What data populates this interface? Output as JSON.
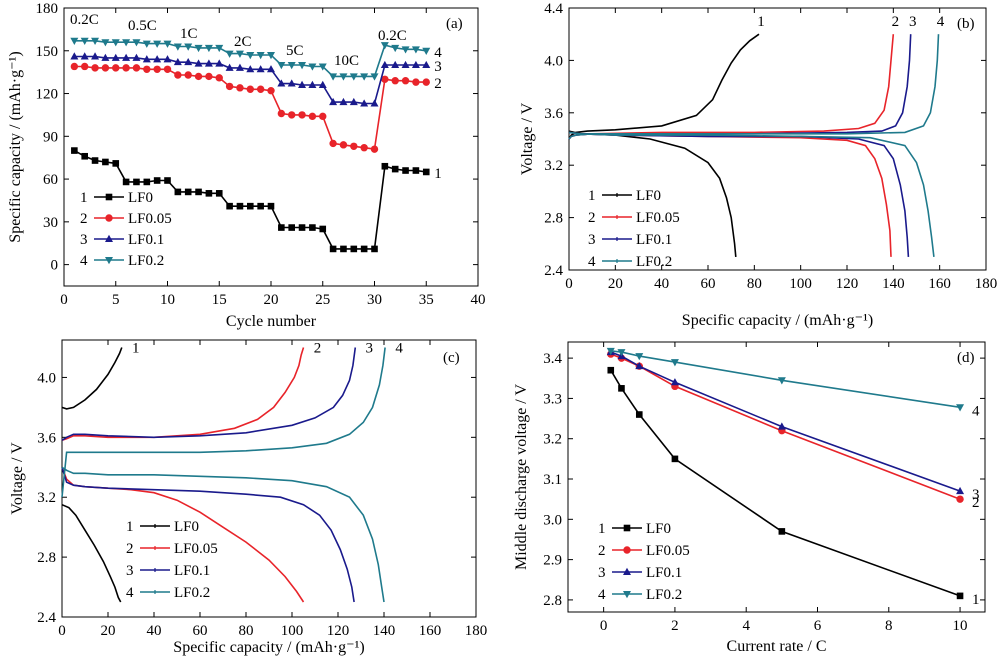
{
  "chart_data": [
    {
      "panel": "(a)",
      "type": "line",
      "xlabel": "Cycle number",
      "ylabel": "Specific capacity / (mAh·g⁻¹)",
      "xlim": [
        0,
        40
      ],
      "ylim": [
        -15,
        180
      ],
      "xticks": [
        0,
        5,
        10,
        15,
        20,
        25,
        30,
        35,
        40
      ],
      "yticks": [
        0,
        30,
        60,
        90,
        120,
        150,
        180
      ],
      "annotations": [
        "0.2C",
        "0.5C",
        "1C",
        "2C",
        "5C",
        "10C",
        "0.2C"
      ],
      "series": [
        {
          "name": "LF0",
          "id": "1",
          "color": "#000000",
          "marker": "square",
          "x": [
            1,
            2,
            3,
            4,
            5,
            6,
            7,
            8,
            9,
            10,
            11,
            12,
            13,
            14,
            15,
            16,
            17,
            18,
            19,
            20,
            21,
            22,
            23,
            24,
            25,
            26,
            27,
            28,
            29,
            30,
            31,
            32,
            33,
            34,
            35
          ],
          "y": [
            80,
            76,
            73,
            72,
            71,
            58,
            58,
            58,
            59,
            59,
            51,
            51,
            51,
            50,
            50,
            41,
            41,
            41,
            41,
            41,
            26,
            26,
            26,
            26,
            25,
            11,
            11,
            11,
            11,
            11,
            69,
            67,
            66,
            66,
            65
          ]
        },
        {
          "name": "LF0.05",
          "id": "2",
          "color": "#e8242a",
          "marker": "circle",
          "x": [
            1,
            2,
            3,
            4,
            5,
            6,
            7,
            8,
            9,
            10,
            11,
            12,
            13,
            14,
            15,
            16,
            17,
            18,
            19,
            20,
            21,
            22,
            23,
            24,
            25,
            26,
            27,
            28,
            29,
            30,
            31,
            32,
            33,
            34,
            35
          ],
          "y": [
            139,
            139,
            138,
            138,
            138,
            138,
            138,
            137,
            137,
            137,
            133,
            133,
            132,
            132,
            131,
            125,
            124,
            123,
            123,
            122,
            106,
            105,
            105,
            104,
            104,
            85,
            84,
            83,
            82,
            81,
            130,
            129,
            129,
            128,
            128
          ]
        },
        {
          "name": "LF0.1",
          "id": "3",
          "color": "#1a1a8c",
          "marker": "triangle-up",
          "x": [
            1,
            2,
            3,
            4,
            5,
            6,
            7,
            8,
            9,
            10,
            11,
            12,
            13,
            14,
            15,
            16,
            17,
            18,
            19,
            20,
            21,
            22,
            23,
            24,
            25,
            26,
            27,
            28,
            29,
            30,
            31,
            32,
            33,
            34,
            35
          ],
          "y": [
            146,
            146,
            146,
            145,
            145,
            145,
            145,
            144,
            144,
            144,
            142,
            142,
            141,
            141,
            141,
            138,
            138,
            137,
            137,
            137,
            127,
            127,
            126,
            126,
            126,
            114,
            114,
            114,
            113,
            113,
            140,
            140,
            140,
            140,
            140
          ]
        },
        {
          "name": "LF0.2",
          "id": "4",
          "color": "#1f7a8c",
          "marker": "triangle-down",
          "x": [
            1,
            2,
            3,
            4,
            5,
            6,
            7,
            8,
            9,
            10,
            11,
            12,
            13,
            14,
            15,
            16,
            17,
            18,
            19,
            20,
            21,
            22,
            23,
            24,
            25,
            26,
            27,
            28,
            29,
            30,
            31,
            32,
            33,
            34,
            35
          ],
          "y": [
            157,
            157,
            157,
            156,
            156,
            156,
            156,
            155,
            155,
            155,
            153,
            153,
            152,
            152,
            152,
            148,
            148,
            147,
            147,
            147,
            140,
            140,
            140,
            139,
            139,
            132,
            132,
            132,
            132,
            132,
            154,
            152,
            151,
            151,
            150
          ]
        }
      ]
    },
    {
      "panel": "(b)",
      "type": "line",
      "xlabel": "Specific capacity / (mAh·g⁻¹)",
      "ylabel": "Voltage / V",
      "xlim": [
        0,
        180
      ],
      "ylim": [
        2.4,
        4.4
      ],
      "xticks": [
        0,
        20,
        40,
        60,
        80,
        100,
        120,
        140,
        160,
        180
      ],
      "yticks": [
        2.4,
        2.8,
        3.2,
        3.6,
        4.0,
        4.4
      ],
      "series": [
        {
          "name": "LF0",
          "id": "1",
          "color": "#000000",
          "charge_x": [
            0,
            1,
            3,
            8,
            20,
            40,
            55,
            62,
            66,
            70,
            74,
            78,
            82
          ],
          "charge_y": [
            3.4,
            3.43,
            3.45,
            3.46,
            3.47,
            3.5,
            3.58,
            3.7,
            3.85,
            3.98,
            4.08,
            4.15,
            4.2
          ],
          "discharge_x": [
            0,
            5,
            10,
            20,
            35,
            50,
            60,
            65,
            68,
            70,
            71.5,
            72
          ],
          "discharge_y": [
            3.46,
            3.44,
            3.44,
            3.43,
            3.4,
            3.33,
            3.22,
            3.1,
            2.95,
            2.8,
            2.6,
            2.5
          ]
        },
        {
          "name": "LF0.05",
          "id": "2",
          "color": "#e8242a",
          "charge_x": [
            0,
            1,
            3,
            10,
            40,
            80,
            110,
            125,
            132,
            136,
            138,
            139,
            140
          ],
          "charge_y": [
            3.4,
            3.42,
            3.43,
            3.44,
            3.45,
            3.45,
            3.46,
            3.48,
            3.52,
            3.62,
            3.8,
            4.0,
            4.2
          ],
          "discharge_x": [
            0,
            5,
            20,
            60,
            100,
            120,
            128,
            132,
            135,
            137,
            138.5,
            139
          ],
          "discharge_y": [
            3.45,
            3.44,
            3.43,
            3.42,
            3.41,
            3.39,
            3.35,
            3.25,
            3.1,
            2.9,
            2.7,
            2.5
          ]
        },
        {
          "name": "LF0.1",
          "id": "3",
          "color": "#1a1a8c",
          "charge_x": [
            0,
            1,
            3,
            10,
            40,
            80,
            120,
            135,
            141,
            144,
            146,
            147,
            147.5
          ],
          "charge_y": [
            3.4,
            3.42,
            3.43,
            3.44,
            3.44,
            3.44,
            3.45,
            3.46,
            3.5,
            3.6,
            3.8,
            4.0,
            4.2
          ],
          "discharge_x": [
            0,
            5,
            20,
            60,
            100,
            125,
            136,
            140,
            143,
            145,
            146,
            146.5
          ],
          "discharge_y": [
            3.45,
            3.44,
            3.43,
            3.42,
            3.42,
            3.4,
            3.35,
            3.25,
            3.05,
            2.85,
            2.65,
            2.5
          ]
        },
        {
          "name": "LF0.2",
          "id": "4",
          "color": "#1f7a8c",
          "charge_x": [
            0,
            1,
            3,
            10,
            40,
            80,
            120,
            145,
            153,
            156,
            158,
            159,
            159.5
          ],
          "charge_y": [
            3.4,
            3.42,
            3.43,
            3.44,
            3.44,
            3.44,
            3.44,
            3.45,
            3.5,
            3.6,
            3.8,
            4.0,
            4.2
          ],
          "discharge_x": [
            0,
            5,
            20,
            60,
            100,
            130,
            145,
            150,
            153,
            155,
            156.5,
            157.5
          ],
          "discharge_y": [
            3.45,
            3.44,
            3.43,
            3.43,
            3.42,
            3.41,
            3.35,
            3.22,
            3.05,
            2.85,
            2.65,
            2.5
          ]
        }
      ]
    },
    {
      "panel": "(c)",
      "type": "line",
      "xlabel": "Specific capacity / (mAh·g⁻¹)",
      "ylabel": "Voltage / V",
      "xlim": [
        0,
        180
      ],
      "ylim": [
        2.4,
        4.25
      ],
      "xticks": [
        0,
        20,
        40,
        60,
        80,
        100,
        120,
        140,
        160,
        180
      ],
      "yticks": [
        2.4,
        2.8,
        3.2,
        3.6,
        4.0
      ],
      "series": [
        {
          "name": "LF0",
          "id": "1",
          "color": "#000000",
          "charge_x": [
            0,
            2,
            5,
            10,
            15,
            20,
            23,
            25,
            26
          ],
          "charge_y": [
            3.8,
            3.79,
            3.8,
            3.85,
            3.92,
            4.02,
            4.1,
            4.16,
            4.2
          ],
          "discharge_x": [
            0,
            3,
            6,
            10,
            14,
            18,
            21,
            23,
            24.5,
            25.5
          ],
          "discharge_y": [
            3.15,
            3.13,
            3.08,
            2.98,
            2.88,
            2.77,
            2.67,
            2.6,
            2.53,
            2.5
          ]
        },
        {
          "name": "LF0.05",
          "id": "2",
          "color": "#e8242a",
          "charge_x": [
            0,
            2,
            5,
            10,
            20,
            40,
            60,
            75,
            85,
            92,
            97,
            101,
            103,
            104,
            105
          ],
          "charge_y": [
            3.58,
            3.59,
            3.61,
            3.61,
            3.6,
            3.6,
            3.62,
            3.66,
            3.72,
            3.8,
            3.9,
            4.0,
            4.08,
            4.15,
            4.2
          ],
          "discharge_x": [
            0,
            2,
            5,
            10,
            20,
            30,
            40,
            50,
            60,
            70,
            80,
            90,
            97,
            102,
            105
          ],
          "discharge_y": [
            3.4,
            3.32,
            3.28,
            3.27,
            3.26,
            3.25,
            3.23,
            3.18,
            3.1,
            3.0,
            2.9,
            2.78,
            2.67,
            2.57,
            2.5
          ]
        },
        {
          "name": "LF0.1",
          "id": "3",
          "color": "#1a1a8c",
          "charge_x": [
            0,
            2,
            5,
            10,
            20,
            40,
            60,
            80,
            100,
            110,
            118,
            122,
            125,
            126.5,
            127.5
          ],
          "charge_y": [
            3.58,
            3.6,
            3.62,
            3.62,
            3.61,
            3.6,
            3.61,
            3.63,
            3.68,
            3.73,
            3.8,
            3.88,
            3.98,
            4.08,
            4.2
          ],
          "discharge_x": [
            0,
            2,
            5,
            10,
            20,
            40,
            60,
            80,
            95,
            105,
            112,
            117,
            121,
            124,
            126,
            127
          ],
          "discharge_y": [
            3.4,
            3.3,
            3.28,
            3.27,
            3.26,
            3.25,
            3.24,
            3.22,
            3.2,
            3.15,
            3.08,
            2.98,
            2.85,
            2.72,
            2.6,
            2.5
          ]
        },
        {
          "name": "LF0.2",
          "id": "4",
          "color": "#1f7a8c",
          "charge_x": [
            0,
            2,
            5,
            10,
            20,
            40,
            60,
            80,
            100,
            115,
            125,
            131,
            135,
            138,
            139.5,
            140.5
          ],
          "charge_y": [
            3.2,
            3.5,
            3.5,
            3.5,
            3.5,
            3.5,
            3.5,
            3.51,
            3.53,
            3.56,
            3.62,
            3.7,
            3.8,
            3.95,
            4.08,
            4.2
          ],
          "discharge_x": [
            0,
            2,
            5,
            10,
            20,
            40,
            60,
            80,
            100,
            115,
            125,
            131,
            135,
            137.5,
            139,
            140
          ],
          "discharge_y": [
            3.4,
            3.38,
            3.36,
            3.36,
            3.35,
            3.35,
            3.34,
            3.33,
            3.31,
            3.27,
            3.2,
            3.08,
            2.92,
            2.75,
            2.6,
            2.5
          ]
        }
      ]
    },
    {
      "panel": "(d)",
      "type": "line",
      "xlabel": "Current rate / C",
      "ylabel": "Middle discharge voltage / V",
      "xlim": [
        -1,
        10.7
      ],
      "ylim": [
        2.77,
        3.44
      ],
      "xticks": [
        0,
        2,
        4,
        6,
        8,
        10
      ],
      "yticks": [
        2.8,
        2.9,
        3.0,
        3.1,
        3.2,
        3.3,
        3.4
      ],
      "series": [
        {
          "name": "LF0",
          "id": "1",
          "color": "#000000",
          "marker": "square",
          "x": [
            0.2,
            0.5,
            1,
            2,
            5,
            10
          ],
          "y": [
            3.37,
            3.325,
            3.26,
            3.15,
            2.97,
            2.81
          ]
        },
        {
          "name": "LF0.05",
          "id": "2",
          "color": "#e8242a",
          "marker": "circle",
          "x": [
            0.2,
            0.5,
            1,
            2,
            5,
            10
          ],
          "y": [
            3.41,
            3.4,
            3.38,
            3.33,
            3.22,
            3.05
          ]
        },
        {
          "name": "LF0.1",
          "id": "3",
          "color": "#1a1a8c",
          "marker": "triangle-up",
          "x": [
            0.2,
            0.5,
            1,
            2,
            5,
            10
          ],
          "y": [
            3.415,
            3.405,
            3.38,
            3.34,
            3.23,
            3.07
          ]
        },
        {
          "name": "LF0.2",
          "id": "4",
          "color": "#1f7a8c",
          "marker": "triangle-down",
          "x": [
            0.2,
            0.5,
            1,
            2,
            5,
            10
          ],
          "y": [
            3.418,
            3.415,
            3.405,
            3.39,
            3.345,
            3.278
          ]
        }
      ]
    }
  ]
}
